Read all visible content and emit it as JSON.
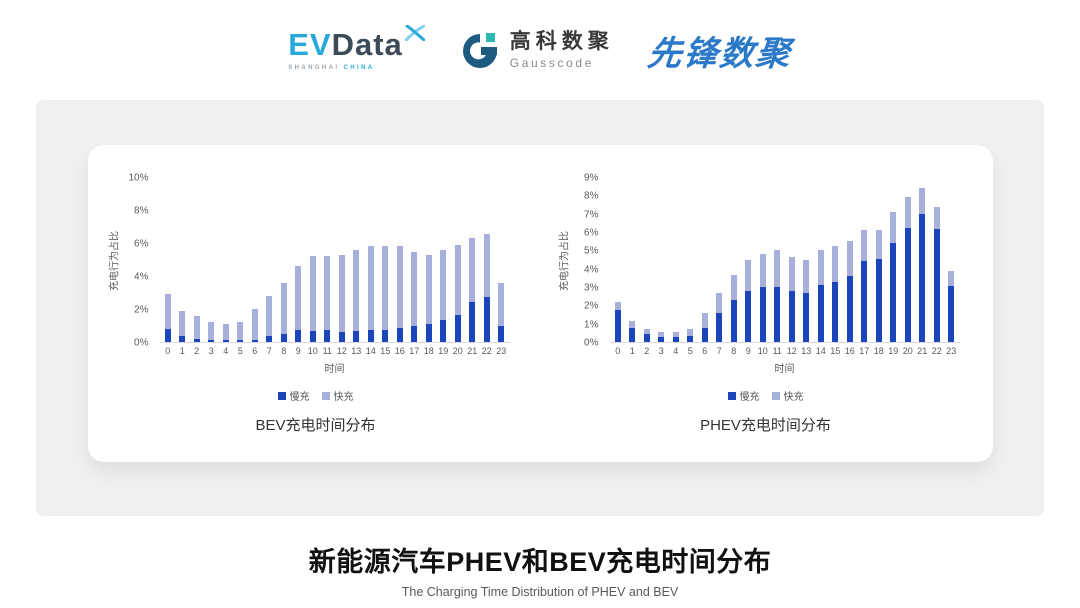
{
  "header": {
    "evdata": {
      "ev": "EV",
      "data": "Data",
      "sub_left": "SHANGHAI",
      "sub_right": "CHINA"
    },
    "gausscode": {
      "cn": "高科数聚",
      "en": "Gausscode"
    },
    "xianfeng": {
      "text": "先锋数聚"
    }
  },
  "footer": {
    "title": "新能源汽车PHEV和BEV充电时间分布",
    "subtitle": "The Charging Time Distribution of PHEV and BEV"
  },
  "colors": {
    "slow_charge": "#1B46BB",
    "fast_charge": "#A7AFDB",
    "axis_line": "#D9D9D9",
    "tick_text": "#595959",
    "panel_gray": "#F0F0F0",
    "evdata_blue": "#29A8DC",
    "evdata_dark": "#3C4A59",
    "gauss_dark_blue": "#1E5B80",
    "gauss_teal": "#2BB8B0",
    "xianfeng_blue": "#2B79C8"
  },
  "chart_data": [
    {
      "type": "bar",
      "stacked": true,
      "title": "BEV充电时间分布",
      "xlabel": "时间",
      "ylabel": "充电行为占比",
      "ylim": [
        0,
        10
      ],
      "ystep": 2,
      "ytick_suffix": "%",
      "grid": false,
      "legend_position": "bottom",
      "categories": [
        "0",
        "1",
        "2",
        "3",
        "4",
        "5",
        "6",
        "7",
        "8",
        "9",
        "10",
        "11",
        "12",
        "13",
        "14",
        "15",
        "16",
        "17",
        "18",
        "19",
        "20",
        "21",
        "22",
        "23"
      ],
      "series": [
        {
          "name": "慢充",
          "color": "#1B46BB",
          "values": [
            0.8,
            0.35,
            0.2,
            0.15,
            0.1,
            0.1,
            0.15,
            0.35,
            0.5,
            0.7,
            0.65,
            0.7,
            0.6,
            0.65,
            0.7,
            0.7,
            0.85,
            1.0,
            1.1,
            1.35,
            1.65,
            2.4,
            2.75,
            1.0
          ]
        },
        {
          "name": "快充",
          "color": "#A7AFDB",
          "values": [
            2.1,
            1.55,
            1.35,
            1.05,
            1.0,
            1.1,
            1.85,
            2.45,
            3.1,
            3.9,
            4.55,
            4.5,
            4.65,
            4.95,
            5.1,
            5.1,
            4.95,
            4.45,
            4.2,
            4.2,
            4.25,
            3.9,
            3.8,
            2.55
          ]
        }
      ]
    },
    {
      "type": "bar",
      "stacked": true,
      "title": "PHEV充电时间分布",
      "xlabel": "时间",
      "ylabel": "充电行为占比",
      "ylim": [
        0,
        9
      ],
      "ystep": 1,
      "ytick_suffix": "%",
      "grid": false,
      "legend_position": "bottom",
      "categories": [
        "0",
        "1",
        "2",
        "3",
        "4",
        "5",
        "6",
        "7",
        "8",
        "9",
        "10",
        "11",
        "12",
        "13",
        "14",
        "15",
        "16",
        "17",
        "18",
        "19",
        "20",
        "21",
        "22",
        "23"
      ],
      "series": [
        {
          "name": "慢充",
          "color": "#1B46BB",
          "values": [
            1.75,
            0.75,
            0.45,
            0.3,
            0.3,
            0.35,
            0.75,
            1.6,
            2.3,
            2.8,
            3.0,
            3.0,
            2.8,
            2.65,
            3.1,
            3.3,
            3.6,
            4.4,
            4.55,
            5.4,
            6.2,
            7.0,
            6.15,
            3.05
          ]
        },
        {
          "name": "快充",
          "color": "#A7AFDB",
          "values": [
            0.45,
            0.4,
            0.25,
            0.25,
            0.25,
            0.35,
            0.85,
            1.1,
            1.35,
            1.7,
            1.8,
            2.0,
            1.85,
            1.85,
            1.9,
            1.95,
            1.9,
            1.7,
            1.55,
            1.7,
            1.7,
            1.4,
            1.2,
            0.8
          ]
        }
      ]
    }
  ]
}
